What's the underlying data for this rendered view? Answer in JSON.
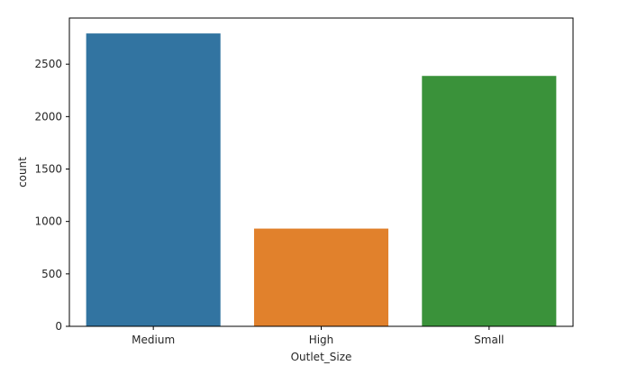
{
  "chart_data": {
    "type": "bar",
    "title": "",
    "xlabel": "Outlet_Size",
    "ylabel": "count",
    "categories": [
      "Medium",
      "High",
      "Small"
    ],
    "values": [
      2793,
      932,
      2388
    ],
    "colors": [
      "#3274a1",
      "#e1812c",
      "#3a923a"
    ],
    "ylim": [
      0,
      2940
    ],
    "yticks": [
      0,
      500,
      1000,
      1500,
      2000,
      2500
    ],
    "grid": false,
    "legend": "none"
  }
}
